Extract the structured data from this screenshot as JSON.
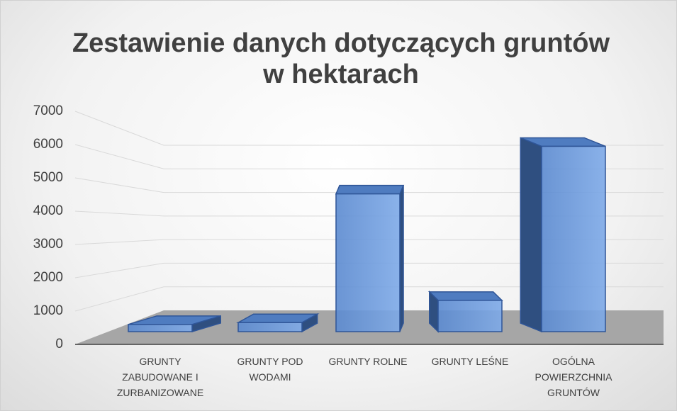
{
  "chart_data": {
    "type": "bar3d",
    "title": "Zestawienie danych dotyczących gruntów w hektarach",
    "categories": [
      "GRUNTY ZABUDOWANE I ZURBANIZOWANE",
      "GRUNTY POD WODAMI",
      "GRUNTY ROLNE",
      "GRUNTY LEŚNE",
      "OGÓLNA POWIERZCHNIA GRUNTÓW"
    ],
    "values": [
      230,
      290,
      4400,
      1000,
      5920
    ],
    "color": "#6f9fe0",
    "ylim": [
      0,
      7000
    ],
    "yticks": [
      0,
      1000,
      2000,
      3000,
      4000,
      5000,
      6000,
      7000
    ],
    "grid": true
  }
}
